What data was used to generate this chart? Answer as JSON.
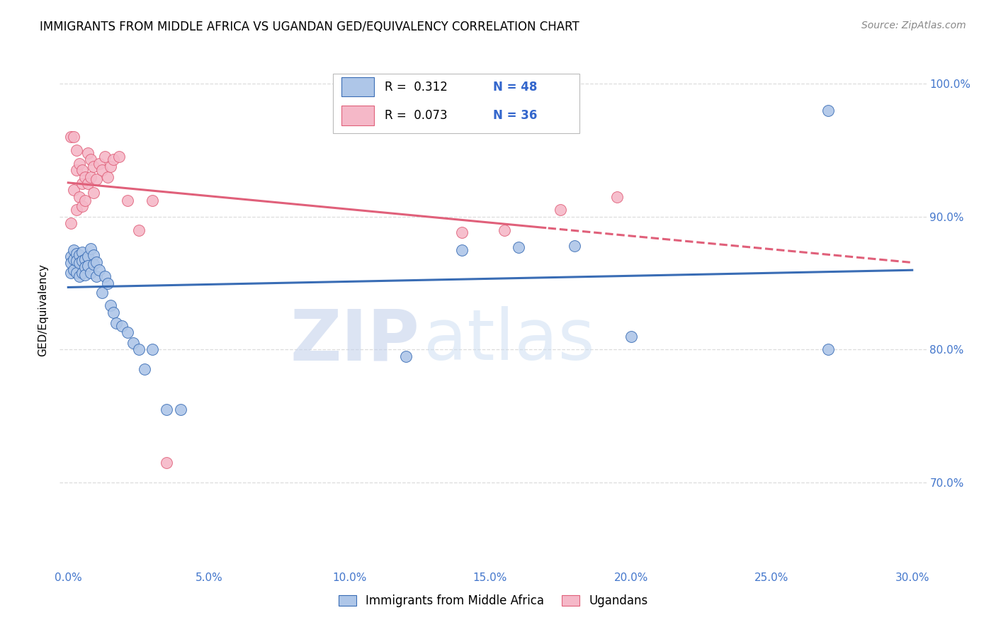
{
  "title": "IMMIGRANTS FROM MIDDLE AFRICA VS UGANDAN GED/EQUIVALENCY CORRELATION CHART",
  "source": "Source: ZipAtlas.com",
  "ylabel": "GED/Equivalency",
  "yticks": [
    0.7,
    0.8,
    0.9,
    1.0
  ],
  "ytick_labels": [
    "70.0%",
    "80.0%",
    "90.0%",
    "100.0%"
  ],
  "xticks": [
    0.0,
    0.05,
    0.1,
    0.15,
    0.2,
    0.25,
    0.3
  ],
  "xtick_labels": [
    "0.0%",
    "5.0%",
    "10.0%",
    "15.0%",
    "20.0%",
    "25.0%",
    "30.0%"
  ],
  "xlim": [
    -0.003,
    0.305
  ],
  "ylim": [
    0.635,
    1.025
  ],
  "blue_R": 0.312,
  "blue_N": 48,
  "pink_R": 0.073,
  "pink_N": 36,
  "blue_color": "#aec6e8",
  "pink_color": "#f5b8c8",
  "blue_line_color": "#3a6db5",
  "pink_line_color": "#e0607a",
  "legend_blue_label": "Immigrants from Middle Africa",
  "legend_pink_label": "Ugandans",
  "watermark_zip": "ZIP",
  "watermark_atlas": "atlas",
  "watermark_color": "#c5d9f0",
  "grid_color": "#dddddd",
  "blue_x": [
    0.001,
    0.001,
    0.001,
    0.002,
    0.002,
    0.002,
    0.003,
    0.003,
    0.003,
    0.004,
    0.004,
    0.004,
    0.005,
    0.005,
    0.005,
    0.006,
    0.006,
    0.006,
    0.007,
    0.007,
    0.008,
    0.008,
    0.009,
    0.009,
    0.01,
    0.01,
    0.011,
    0.012,
    0.013,
    0.014,
    0.015,
    0.016,
    0.017,
    0.019,
    0.021,
    0.023,
    0.025,
    0.027,
    0.03,
    0.035,
    0.04,
    0.12,
    0.14,
    0.16,
    0.18,
    0.2,
    0.27,
    0.27
  ],
  "blue_y": [
    0.87,
    0.865,
    0.858,
    0.875,
    0.868,
    0.86,
    0.872,
    0.867,
    0.858,
    0.871,
    0.865,
    0.855,
    0.873,
    0.867,
    0.858,
    0.868,
    0.862,
    0.856,
    0.87,
    0.863,
    0.876,
    0.858,
    0.871,
    0.864,
    0.866,
    0.855,
    0.86,
    0.843,
    0.855,
    0.85,
    0.833,
    0.828,
    0.82,
    0.818,
    0.813,
    0.805,
    0.8,
    0.785,
    0.8,
    0.755,
    0.755,
    0.795,
    0.875,
    0.877,
    0.878,
    0.81,
    0.98,
    0.8
  ],
  "pink_x": [
    0.001,
    0.001,
    0.002,
    0.002,
    0.003,
    0.003,
    0.003,
    0.004,
    0.004,
    0.005,
    0.005,
    0.005,
    0.006,
    0.006,
    0.007,
    0.007,
    0.008,
    0.008,
    0.009,
    0.009,
    0.01,
    0.011,
    0.012,
    0.013,
    0.014,
    0.015,
    0.016,
    0.018,
    0.021,
    0.025,
    0.03,
    0.035,
    0.14,
    0.155,
    0.175,
    0.195
  ],
  "pink_y": [
    0.96,
    0.895,
    0.92,
    0.96,
    0.95,
    0.935,
    0.905,
    0.915,
    0.94,
    0.935,
    0.925,
    0.908,
    0.93,
    0.912,
    0.948,
    0.925,
    0.943,
    0.93,
    0.938,
    0.918,
    0.928,
    0.94,
    0.935,
    0.945,
    0.93,
    0.938,
    0.943,
    0.945,
    0.912,
    0.89,
    0.912,
    0.715,
    0.888,
    0.89,
    0.905,
    0.915
  ]
}
